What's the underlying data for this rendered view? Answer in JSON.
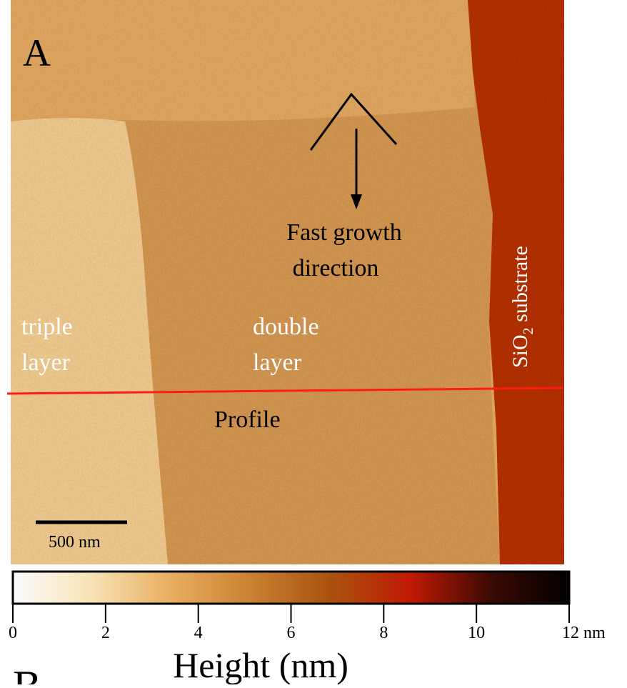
{
  "panel_label": "A",
  "annotations": {
    "fast_growth": [
      "Fast growth",
      "direction"
    ],
    "triple_layer": [
      "triple",
      "layer"
    ],
    "double_layer": [
      "double",
      "layer"
    ],
    "substrate": {
      "main": "SiO",
      "subscript": "2",
      "rest": " substrate"
    },
    "profile": "Profile",
    "scale_bar": "500 nm"
  },
  "colorbar": {
    "title": "Height (nm)",
    "range": [
      0,
      12
    ],
    "ticks": [
      0,
      2,
      4,
      6,
      8,
      {
        "value": 12,
        "label": "12 nm"
      },
      10
    ],
    "colors": [
      "#fbfbfd",
      "#f6e2b4",
      "#e9ad5e",
      "#c98132",
      "#a9520f",
      "#c11a04",
      "#3d0a04",
      "#000000"
    ]
  },
  "next_panel_label": "B"
}
